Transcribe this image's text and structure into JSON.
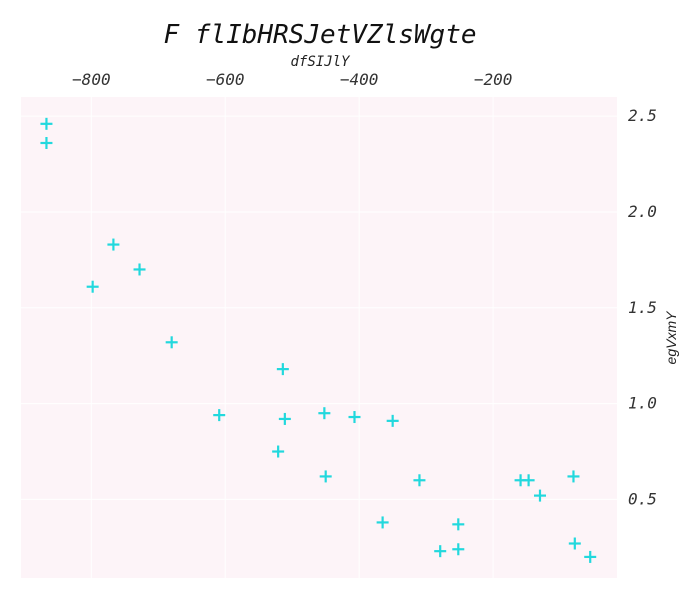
{
  "chart_data": {
    "type": "scatter",
    "title": "F flIbHRSJetVZlsWgte",
    "xlabel": "dfSIJlY",
    "ylabel": "egVxmY",
    "xlim": [
      -905,
      -15
    ],
    "ylim": [
      0.09,
      2.6
    ],
    "x_axis_position": "top",
    "y_axis_position": "right",
    "grid": true,
    "background_color": "#fdf4f8",
    "marker": "plus",
    "marker_color": "#22d8dd",
    "xticks": [
      -800,
      -600,
      -400,
      -200
    ],
    "yticks": [
      0.5,
      1.0,
      1.5,
      2.0,
      2.5
    ],
    "xtick_labels": [
      "−800",
      "−600",
      "−400",
      "−200"
    ],
    "ytick_labels": [
      "0.5",
      "1.0",
      "1.5",
      "2.0",
      "2.5"
    ],
    "series": [
      {
        "points": [
          {
            "x": -867,
            "y": 2.46
          },
          {
            "x": -867,
            "y": 2.36
          },
          {
            "x": -767,
            "y": 1.83
          },
          {
            "x": -798,
            "y": 1.61
          },
          {
            "x": -728,
            "y": 1.7
          },
          {
            "x": -680,
            "y": 1.32
          },
          {
            "x": -609,
            "y": 0.94
          },
          {
            "x": -514,
            "y": 1.18
          },
          {
            "x": -511,
            "y": 0.92
          },
          {
            "x": -521,
            "y": 0.75
          },
          {
            "x": -452,
            "y": 0.95
          },
          {
            "x": -450,
            "y": 0.62
          },
          {
            "x": -407,
            "y": 0.93
          },
          {
            "x": -350,
            "y": 0.91
          },
          {
            "x": -365,
            "y": 0.38
          },
          {
            "x": -310,
            "y": 0.6
          },
          {
            "x": -279,
            "y": 0.23
          },
          {
            "x": -252,
            "y": 0.37
          },
          {
            "x": -252,
            "y": 0.24
          },
          {
            "x": -159,
            "y": 0.6
          },
          {
            "x": -147,
            "y": 0.6
          },
          {
            "x": -130,
            "y": 0.52
          },
          {
            "x": -80,
            "y": 0.62
          },
          {
            "x": -78,
            "y": 0.27
          },
          {
            "x": -55,
            "y": 0.2
          }
        ]
      }
    ]
  }
}
